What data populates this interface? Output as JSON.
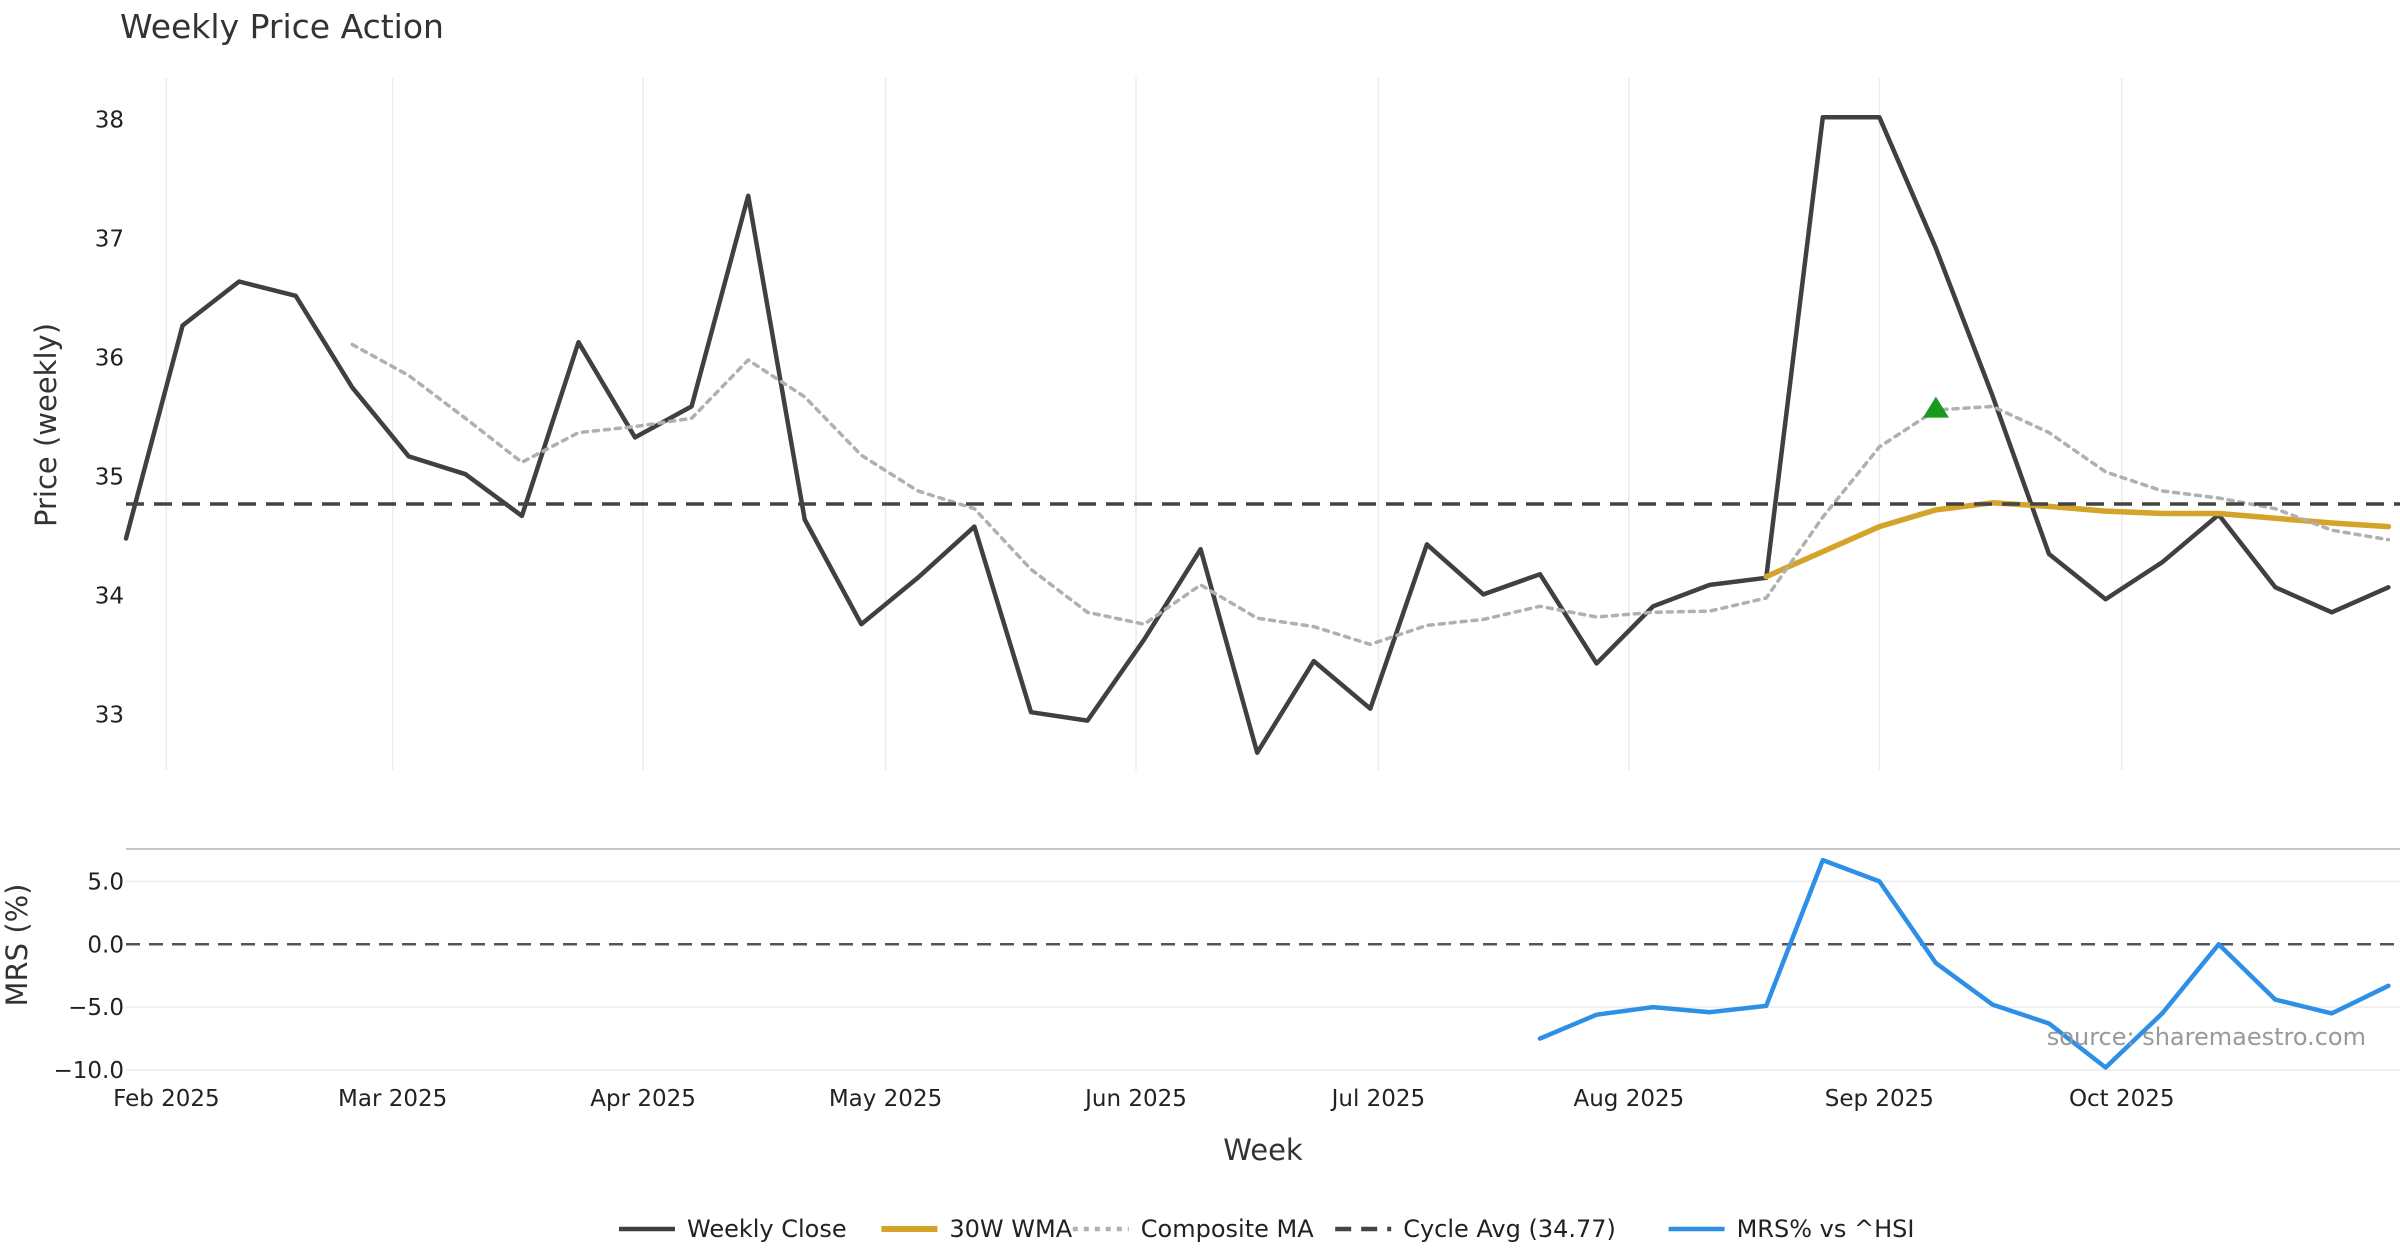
{
  "chart_data": {
    "type": "line",
    "title": "Weekly Price Action",
    "price_panel": {
      "ylabel": "Price (weekly)",
      "ylim": [
        32.4,
        38.35
      ],
      "yticks": [
        33,
        34,
        35,
        36,
        37,
        38
      ],
      "x": [
        "2025-01-27",
        "2025-02-03",
        "2025-02-10",
        "2025-02-17",
        "2025-02-24",
        "2025-03-03",
        "2025-03-10",
        "2025-03-17",
        "2025-03-24",
        "2025-03-31",
        "2025-04-07",
        "2025-04-14",
        "2025-04-21",
        "2025-04-28",
        "2025-05-05",
        "2025-05-12",
        "2025-05-19",
        "2025-05-26",
        "2025-06-02",
        "2025-06-09",
        "2025-06-16",
        "2025-06-23",
        "2025-06-30",
        "2025-07-07",
        "2025-07-14",
        "2025-07-21",
        "2025-07-28",
        "2025-08-04",
        "2025-08-11",
        "2025-08-18",
        "2025-08-25",
        "2025-09-01",
        "2025-09-08",
        "2025-09-15",
        "2025-09-22",
        "2025-09-29",
        "2025-10-06",
        "2025-10-13",
        "2025-10-20",
        "2025-10-27",
        "2025-11-03"
      ],
      "series": [
        {
          "name": "Weekly Close",
          "color": "#404040",
          "style": "solid",
          "values": [
            34.48,
            36.27,
            36.64,
            36.52,
            35.75,
            35.17,
            35.02,
            34.67,
            36.13,
            35.33,
            35.59,
            37.36,
            34.64,
            33.76,
            34.15,
            34.58,
            33.02,
            32.95,
            33.63,
            34.39,
            32.68,
            33.45,
            33.05,
            34.43,
            34.01,
            34.18,
            33.43,
            33.91,
            34.09,
            34.15,
            38.02,
            38.02,
            36.92,
            35.68,
            34.35,
            33.97,
            34.28,
            34.68,
            34.07,
            33.86,
            34.07
          ]
        },
        {
          "name": "30W WMA",
          "color": "#d4a32a",
          "style": "solid",
          "values": [
            null,
            null,
            null,
            null,
            null,
            null,
            null,
            null,
            null,
            null,
            null,
            null,
            null,
            null,
            null,
            null,
            null,
            null,
            null,
            null,
            null,
            null,
            null,
            null,
            null,
            null,
            null,
            null,
            null,
            34.16,
            34.37,
            34.58,
            34.72,
            34.78,
            34.75,
            34.71,
            34.69,
            34.69,
            34.65,
            34.61,
            34.58
          ]
        },
        {
          "name": "Composite MA",
          "color": "#b0b0b0",
          "style": "dotted",
          "values": [
            null,
            null,
            null,
            null,
            36.11,
            35.85,
            35.49,
            35.12,
            35.37,
            35.42,
            35.49,
            35.98,
            35.67,
            35.18,
            34.88,
            34.73,
            34.22,
            33.86,
            33.76,
            34.09,
            33.81,
            33.74,
            33.59,
            33.75,
            33.8,
            33.91,
            33.82,
            33.86,
            33.87,
            33.98,
            34.66,
            35.25,
            35.56,
            35.59,
            35.37,
            35.04,
            34.88,
            34.82,
            34.73,
            34.55,
            34.47
          ]
        },
        {
          "name": "Cycle Avg (34.77)",
          "color": "#444444",
          "style": "dashed",
          "constant": 34.77
        }
      ],
      "marker": {
        "shape": "triangle-up",
        "color": "#1a9a1a",
        "x": "2025-09-08",
        "y": 35.58
      }
    },
    "mrs_panel": {
      "ylabel": "MRS (%)",
      "ylim": [
        -10.0,
        7.5
      ],
      "yticks": [
        5.0,
        0.0,
        -5.0,
        -10.0
      ],
      "ytick_labels": [
        "5.0",
        "0.0",
        "−5.0",
        "−10.0"
      ],
      "series": [
        {
          "name": "MRS% vs ^HSI",
          "color": "#2e8fe6",
          "style": "solid",
          "values": [
            null,
            null,
            null,
            null,
            null,
            null,
            null,
            null,
            null,
            null,
            null,
            null,
            null,
            null,
            null,
            null,
            null,
            null,
            null,
            null,
            null,
            null,
            null,
            null,
            null,
            -7.5,
            -5.6,
            -5.0,
            -5.4,
            -4.9,
            6.7,
            5.0,
            -1.5,
            -4.8,
            -6.3,
            -9.8,
            -5.5,
            0.0,
            -4.4,
            -5.5,
            -3.3
          ]
        }
      ],
      "zero_line": {
        "value": 0,
        "style": "dashed"
      }
    },
    "xlabel": "Week",
    "xticks": [
      {
        "date": "2025-02-01",
        "label": "Feb 2025"
      },
      {
        "date": "2025-03-01",
        "label": "Mar 2025"
      },
      {
        "date": "2025-04-01",
        "label": "Apr 2025"
      },
      {
        "date": "2025-05-01",
        "label": "May 2025"
      },
      {
        "date": "2025-06-01",
        "label": "Jun 2025"
      },
      {
        "date": "2025-07-01",
        "label": "Jul 2025"
      },
      {
        "date": "2025-08-01",
        "label": "Aug 2025"
      },
      {
        "date": "2025-09-01",
        "label": "Sep 2025"
      },
      {
        "date": "2025-10-01",
        "label": "Oct 2025"
      }
    ],
    "grid": true,
    "legend_position": "bottom-center",
    "legend": [
      {
        "label": "Weekly Close",
        "color": "#404040",
        "style": "solid"
      },
      {
        "label": "30W WMA",
        "color": "#d4a32a",
        "style": "solid"
      },
      {
        "label": "Composite MA",
        "color": "#b0b0b0",
        "style": "dotted"
      },
      {
        "label": "Cycle Avg (34.77)",
        "color": "#444444",
        "style": "dashed"
      },
      {
        "label": "MRS% vs ^HSI",
        "color": "#2e8fe6",
        "style": "solid"
      }
    ],
    "annotation": "source: sharemaestro.com"
  }
}
